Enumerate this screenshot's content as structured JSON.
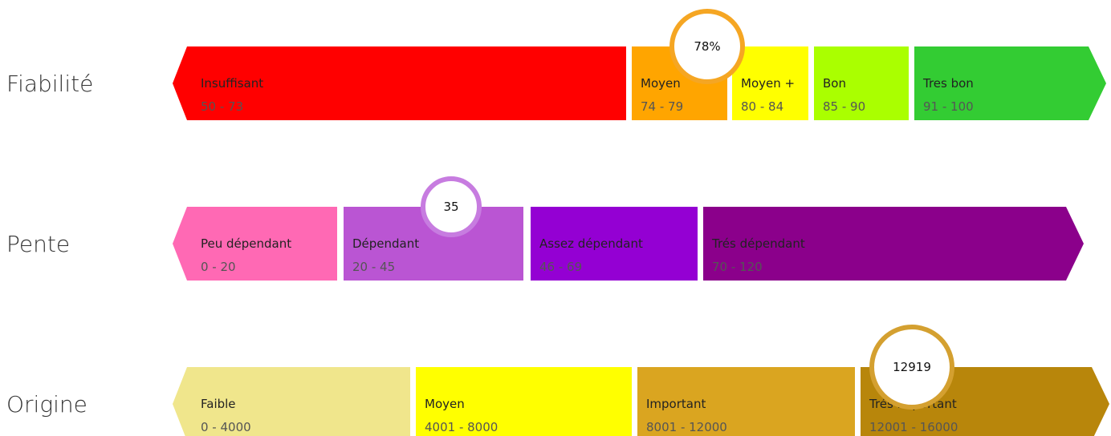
{
  "rows": [
    {
      "label": "Fiabilité",
      "marker": "78%",
      "segments": [
        {
          "name": "Insuffisant",
          "range": "50 - 73"
        },
        {
          "name": "Moyen",
          "range": "74 - 79"
        },
        {
          "name": "Moyen +",
          "range": "80 - 84"
        },
        {
          "name": "Bon",
          "range": "85 - 90"
        },
        {
          "name": "Tres bon",
          "range": "91 - 100"
        }
      ]
    },
    {
      "label": "Pente",
      "marker": "35",
      "segments": [
        {
          "name": "Peu dépendant",
          "range": "0 - 20"
        },
        {
          "name": "Dépendant",
          "range": "20 - 45"
        },
        {
          "name": "Assez dépendant",
          "range": "46 - 69"
        },
        {
          "name": "Trés dépendant",
          "range": "70 - 120"
        }
      ]
    },
    {
      "label": "Origine",
      "marker": "12919",
      "segments": [
        {
          "name": "Faible",
          "range": "0 - 4000"
        },
        {
          "name": "Moyen",
          "range": "4001 - 8000"
        },
        {
          "name": "Important",
          "range": "8001 - 12000"
        },
        {
          "name": "Trés important",
          "range": "12001 - 16000"
        }
      ]
    }
  ]
}
